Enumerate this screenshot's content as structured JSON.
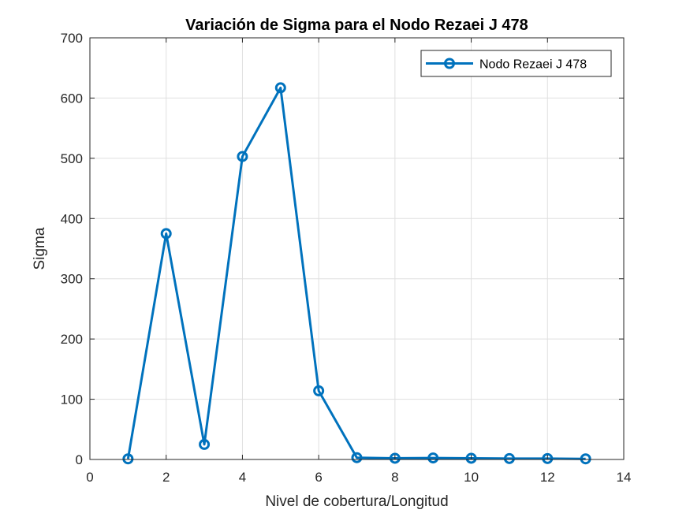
{
  "chart_data": {
    "type": "line",
    "title": "Variación de Sigma para el Nodo Rezaei J 478",
    "xlabel": "Nivel de cobertura/Longitud",
    "ylabel": "Sigma",
    "xlim": [
      0,
      14
    ],
    "ylim": [
      0,
      700
    ],
    "xticks": [
      0,
      2,
      4,
      6,
      8,
      10,
      12,
      14
    ],
    "yticks": [
      0,
      100,
      200,
      300,
      400,
      500,
      600,
      700
    ],
    "grid": true,
    "legend_position": "top-right",
    "series": [
      {
        "name": "Nodo Rezaei J 478",
        "color": "#0072BD",
        "marker": "circle",
        "x": [
          1,
          2,
          3,
          4,
          5,
          6,
          7,
          8,
          9,
          10,
          11,
          12,
          13
        ],
        "y": [
          1,
          375,
          25,
          503,
          617,
          114,
          3,
          2,
          2.5,
          2,
          1.5,
          1.5,
          1
        ]
      }
    ]
  }
}
